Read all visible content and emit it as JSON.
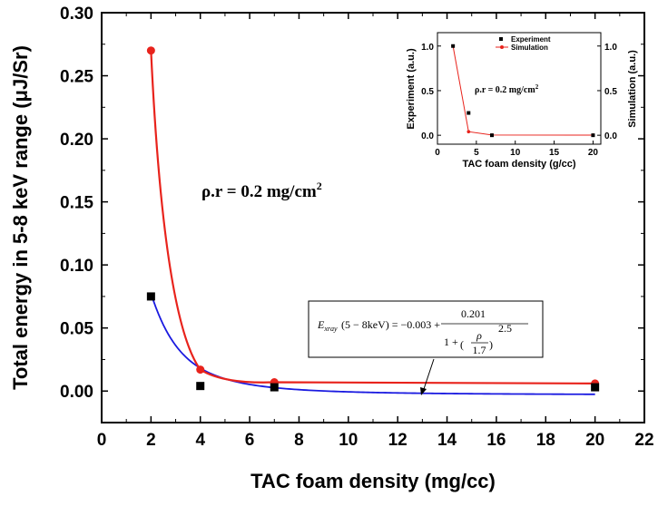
{
  "chart_data": [
    {
      "type": "line",
      "xlabel": "TAC foam density (mg/cc)",
      "ylabel": "Total energy in 5-8 keV range (μJ/Sr)",
      "xlim": [
        0,
        22
      ],
      "ylim": [
        -0.025,
        0.3
      ],
      "x_ticks": [
        "0",
        "2",
        "4",
        "6",
        "8",
        "10",
        "12",
        "14",
        "16",
        "18",
        "20",
        "22"
      ],
      "y_ticks": [
        "0.00",
        "0.05",
        "0.10",
        "0.15",
        "0.20",
        "0.25",
        "0.30"
      ],
      "series": [
        {
          "marker": "circle",
          "color": "#e8231c",
          "x": [
            2,
            4,
            7,
            20
          ],
          "values": [
            0.27,
            0.017,
            0.007,
            0.006
          ]
        },
        {
          "marker": "square",
          "color": "#000000",
          "x": [
            2,
            4,
            7,
            20
          ],
          "values": [
            0.075,
            0.004,
            0.003,
            0.003
          ]
        },
        {
          "type": "fit-curve",
          "color": "#1a1ae0",
          "formula": "-0.003 + 0.201/(1+(rho/1.7)^2.5)"
        }
      ],
      "annotations": {
        "rho_r": "ρ.r = 0.2 mg/cm",
        "rho_r_sup": "2",
        "formula_lhs": "E",
        "formula_sub": "xray",
        "formula_arg": "(5 − 8keV) = −0.003 +",
        "formula_num": "0.201",
        "formula_den_one": "1 +",
        "formula_rho": "ρ",
        "formula_den_val": "1.7",
        "formula_exp": "2.5"
      }
    },
    {
      "type": "line",
      "xlabel": "TAC foam density (g/cc)",
      "ylabel_left": "Experiment (a.u.)",
      "ylabel_right": "Simulation (a.u.)",
      "xlim": [
        0,
        21
      ],
      "ylim": [
        -0.1,
        1.15
      ],
      "x_ticks": [
        "0",
        "5",
        "10",
        "15",
        "20"
      ],
      "y_ticks": [
        "0.0",
        "0.5",
        "1.0"
      ],
      "legend": [
        "Experiment",
        "Simulation"
      ],
      "legend_position": "top-right",
      "series": [
        {
          "name": "Experiment",
          "marker": "square",
          "color": "#000000",
          "x": [
            2,
            4,
            7,
            20
          ],
          "values": [
            1.0,
            0.25,
            0.0,
            0.0
          ]
        },
        {
          "name": "Simulation",
          "marker": "circle",
          "color": "#e8231c",
          "x": [
            2,
            4,
            7,
            20
          ],
          "values": [
            1.0,
            0.04,
            0.003,
            0.002
          ]
        }
      ],
      "annotations": {
        "rho_r": "ρ.r = 0.2 mg/cm",
        "rho_r_sup": "2"
      }
    }
  ]
}
